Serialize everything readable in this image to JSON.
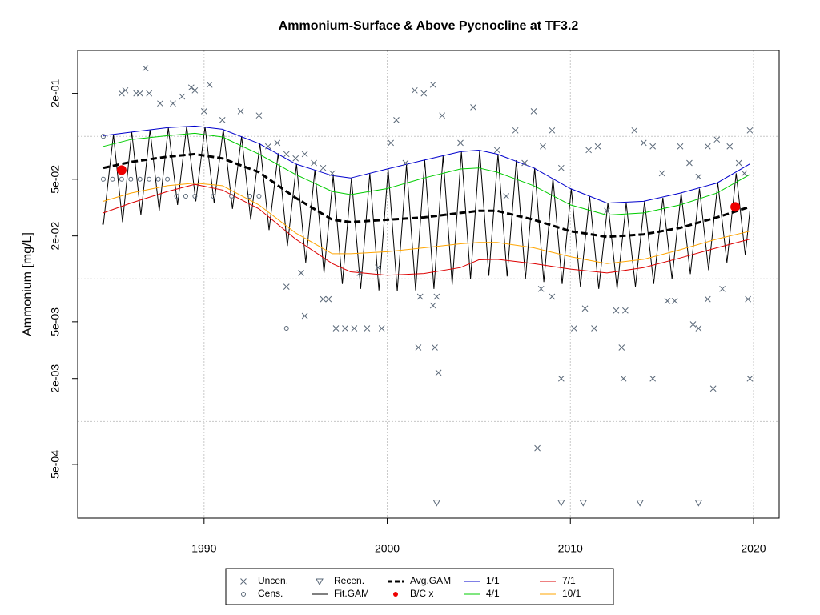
{
  "chart_data": {
    "type": "mixed",
    "title": "Ammonium-Surface & Above Pycnocline at TF3.2",
    "y_label": "Ammonium [mg/L]",
    "log_y": true,
    "grid": true,
    "xlim": [
      1983.1,
      2021.4
    ],
    "ylim": [
      0.00021,
      0.4
    ],
    "xticks": [
      1990,
      2000,
      2010,
      2020
    ],
    "yticks": [
      {
        "value": 0.2,
        "label": "2e-01"
      },
      {
        "value": 0.05,
        "label": "5e-02"
      },
      {
        "value": 0.02,
        "label": "2e-02"
      },
      {
        "value": 0.005,
        "label": "5e-03"
      },
      {
        "value": 0.002,
        "label": "2e-03"
      },
      {
        "value": 0.0005,
        "label": "5e-04"
      }
    ],
    "ygrid": [
      0.1,
      0.01,
      0.001
    ],
    "legend": "bottom",
    "series": [
      {
        "name": "Uncen.",
        "type": "scatter",
        "marker": "x",
        "color": "#5a6878",
        "x": [
          1985.5,
          1985.7,
          1986.3,
          1986.5,
          1986.8,
          1987.0,
          1987.6,
          1988.3,
          1988.8,
          1989.3,
          1989.5,
          1990.0,
          1990.3,
          1991.0,
          1992.0,
          1993.0,
          1993.5,
          1994.0,
          1994.5,
          1995.0,
          1995.5,
          1996.0,
          1996.5,
          1997.0,
          1995.3,
          1994.5,
          1996.5,
          1996.8,
          1997.2,
          1997.7,
          1998.2,
          1998.9,
          1999.7,
          1995.5,
          1998.5,
          1999.5,
          2000.2,
          2000.5,
          2001.0,
          2001.5,
          2002.0,
          2002.5,
          2001.8,
          2002.5,
          2002.7,
          2002.6,
          2001.7,
          2002.8,
          2003.0,
          2004.0,
          2004.7,
          2006.0,
          2006.5,
          2007.0,
          2007.5,
          2008.0,
          2008.5,
          2009.0,
          2009.5,
          2008.4,
          2009.0,
          2010.2,
          2009.5,
          2008.2,
          2011.0,
          2011.5,
          2012.0,
          2012.5,
          2013.0,
          2012.8,
          2012.9,
          2013.5,
          2014.0,
          2014.5,
          2015.0,
          2015.3,
          2015.7,
          2016.0,
          2016.5,
          2017.0,
          2017.5,
          2018.0,
          2018.3,
          2017.5,
          2017.0,
          2017.8,
          2018.7,
          2019.2,
          2019.5,
          2019.8,
          2019.7,
          2019.8,
          2016.7,
          2014.5,
          2011.3,
          2010.8
        ],
        "values": [
          0.2,
          0.21,
          0.2,
          0.2,
          0.3,
          0.2,
          0.17,
          0.17,
          0.19,
          0.22,
          0.21,
          0.15,
          0.23,
          0.13,
          0.15,
          0.14,
          0.085,
          0.09,
          0.075,
          0.07,
          0.075,
          0.065,
          0.06,
          0.055,
          0.011,
          0.0088,
          0.0072,
          0.0072,
          0.0045,
          0.0045,
          0.0045,
          0.0045,
          0.0045,
          0.0055,
          0.011,
          0.012,
          0.09,
          0.13,
          0.065,
          0.21,
          0.2,
          0.23,
          0.0075,
          0.0065,
          0.0075,
          0.0033,
          0.0033,
          0.0022,
          0.14,
          0.09,
          0.16,
          0.08,
          0.038,
          0.11,
          0.065,
          0.15,
          0.085,
          0.11,
          0.06,
          0.0085,
          0.0075,
          0.0045,
          0.002,
          0.00065,
          0.08,
          0.085,
          0.03,
          0.006,
          0.006,
          0.0033,
          0.002,
          0.11,
          0.09,
          0.085,
          0.055,
          0.007,
          0.007,
          0.085,
          0.065,
          0.052,
          0.085,
          0.095,
          0.0085,
          0.0072,
          0.0045,
          0.0017,
          0.085,
          0.065,
          0.055,
          0.11,
          0.0072,
          0.002,
          0.0048,
          0.002,
          0.0045,
          0.0062
        ]
      },
      {
        "name": "Cens.",
        "type": "scatter",
        "marker": "o",
        "color": "#5a6878",
        "x": [
          1984.5,
          1985.0,
          1985.5,
          1986.0,
          1986.5,
          1987.0,
          1987.5,
          1988.0,
          1988.5,
          1989.0,
          1989.5,
          1990.5,
          1991.5,
          1992.5,
          1993.0,
          1984.5,
          1994.5
        ],
        "values": [
          0.05,
          0.05,
          0.05,
          0.05,
          0.05,
          0.05,
          0.05,
          0.05,
          0.038,
          0.038,
          0.038,
          0.038,
          0.038,
          0.038,
          0.038,
          0.1,
          0.0045
        ]
      },
      {
        "name": "Recen.",
        "type": "scatter",
        "marker": "triangle",
        "color": "#5a6878",
        "x": [
          2002.7,
          2009.5,
          2010.7,
          2013.8,
          2017.0
        ],
        "values": [
          0.00027,
          0.00027,
          0.00027,
          0.00027,
          0.00027
        ]
      },
      {
        "name": "Fit.GAM",
        "type": "line",
        "color": "#000000",
        "width": 1,
        "x": [
          1984.5,
          1985.05,
          1985.55,
          1986.05,
          1986.55,
          1987.05,
          1987.55,
          1988.05,
          1988.55,
          1989.05,
          1989.55,
          1990.05,
          1990.55,
          1991.05,
          1991.55,
          1992.05,
          1992.55,
          1993.05,
          1993.55,
          1994.05,
          1994.55,
          1995.05,
          1995.55,
          1996.05,
          1996.55,
          1997.05,
          1997.55,
          1998.05,
          1998.55,
          1999.05,
          1999.55,
          2000.05,
          2000.55,
          2001.05,
          2001.55,
          2002.05,
          2002.55,
          2003.05,
          2003.55,
          2004.05,
          2004.55,
          2005.05,
          2005.55,
          2006.05,
          2006.55,
          2007.05,
          2007.55,
          2008.05,
          2008.55,
          2009.05,
          2009.55,
          2010.05,
          2010.55,
          2011.05,
          2011.55,
          2012.05,
          2012.55,
          2013.05,
          2013.55,
          2014.05,
          2014.55,
          2015.05,
          2015.55,
          2016.05,
          2016.55,
          2017.05,
          2017.55,
          2018.05,
          2018.55,
          2019.05,
          2019.55,
          2019.8
        ],
        "values": [
          0.024,
          0.103,
          0.025,
          0.107,
          0.028,
          0.111,
          0.03,
          0.115,
          0.033,
          0.118,
          0.035,
          0.117,
          0.034,
          0.112,
          0.031,
          0.1,
          0.026,
          0.089,
          0.022,
          0.076,
          0.017,
          0.064,
          0.013,
          0.058,
          0.011,
          0.053,
          0.0092,
          0.051,
          0.0085,
          0.055,
          0.0083,
          0.059,
          0.0082,
          0.063,
          0.0083,
          0.068,
          0.0085,
          0.073,
          0.0091,
          0.078,
          0.01,
          0.08,
          0.0105,
          0.075,
          0.0104,
          0.068,
          0.01,
          0.06,
          0.0095,
          0.051,
          0.0092,
          0.043,
          0.0088,
          0.038,
          0.0085,
          0.034,
          0.0085,
          0.034,
          0.0088,
          0.035,
          0.0092,
          0.037,
          0.01,
          0.04,
          0.0108,
          0.043,
          0.0115,
          0.047,
          0.013,
          0.055,
          0.0146,
          0.03
        ]
      },
      {
        "name": "Avg.GAM",
        "type": "line",
        "color": "#000000",
        "width": 3,
        "dash": true,
        "x": [
          1984.5,
          1986,
          1988,
          1989.5,
          1991,
          1993,
          1995,
          1997,
          1998,
          2000,
          2002,
          2004,
          2005,
          2006,
          2008,
          2010,
          2012,
          2014,
          2016,
          2018,
          2019.8
        ],
        "values": [
          0.06,
          0.066,
          0.072,
          0.075,
          0.07,
          0.056,
          0.037,
          0.026,
          0.025,
          0.026,
          0.027,
          0.029,
          0.03,
          0.03,
          0.026,
          0.0216,
          0.0197,
          0.0205,
          0.0228,
          0.027,
          0.032
        ]
      },
      {
        "name": "B/C x",
        "type": "scatter",
        "marker": "dot",
        "color": "#ee0000",
        "x": [
          1985.5,
          2019.0
        ],
        "values": [
          0.058,
          0.032
        ]
      },
      {
        "name": "1/1",
        "type": "line",
        "color": "#0000cd",
        "width": 1,
        "x": [
          1984.5,
          1986,
          1988,
          1989.5,
          1991,
          1993,
          1995,
          1997,
          1998,
          2000,
          2002,
          2004,
          2005,
          2006,
          2008,
          2010,
          2012,
          2014,
          2016,
          2018,
          2019.8
        ],
        "values": [
          0.101,
          0.107,
          0.115,
          0.118,
          0.112,
          0.089,
          0.064,
          0.053,
          0.051,
          0.059,
          0.068,
          0.078,
          0.08,
          0.075,
          0.06,
          0.043,
          0.034,
          0.035,
          0.04,
          0.047,
          0.064
        ]
      },
      {
        "name": "4/1",
        "type": "line",
        "color": "#00cc00",
        "width": 1,
        "x": [
          1984.5,
          1986,
          1988,
          1989.5,
          1991,
          1993,
          1995,
          1997,
          1998,
          2000,
          2002,
          2004,
          2005,
          2006,
          2008,
          2010,
          2012,
          2014,
          2016,
          2018,
          2019.8
        ],
        "values": [
          0.085,
          0.095,
          0.101,
          0.105,
          0.099,
          0.075,
          0.054,
          0.041,
          0.039,
          0.043,
          0.051,
          0.059,
          0.06,
          0.056,
          0.045,
          0.033,
          0.028,
          0.029,
          0.033,
          0.04,
          0.054
        ]
      },
      {
        "name": "7/1",
        "type": "line",
        "color": "#dd0000",
        "width": 1,
        "x": [
          1984.5,
          1986,
          1988,
          1989.5,
          1991,
          1993,
          1995,
          1997,
          1998,
          2000,
          2002,
          2004,
          2005,
          2006,
          2008,
          2010,
          2012,
          2014,
          2016,
          2018,
          2019.8
        ],
        "values": [
          0.029,
          0.034,
          0.041,
          0.046,
          0.042,
          0.031,
          0.019,
          0.0128,
          0.0112,
          0.0106,
          0.0109,
          0.012,
          0.0136,
          0.0137,
          0.0128,
          0.0117,
          0.011,
          0.012,
          0.014,
          0.0165,
          0.019
        ]
      },
      {
        "name": "10/1",
        "type": "line",
        "color": "#ffa500",
        "width": 1,
        "x": [
          1984.5,
          1986,
          1988,
          1989.5,
          1991,
          1993,
          1995,
          1997,
          1998,
          2000,
          2002,
          2004,
          2005,
          2006,
          2008,
          2010,
          2012,
          2014,
          2016,
          2018,
          2019.8
        ],
        "values": [
          0.035,
          0.04,
          0.045,
          0.047,
          0.045,
          0.033,
          0.021,
          0.015,
          0.015,
          0.0155,
          0.0165,
          0.0176,
          0.018,
          0.018,
          0.0165,
          0.0143,
          0.0128,
          0.0137,
          0.016,
          0.019,
          0.0216
        ]
      }
    ]
  }
}
